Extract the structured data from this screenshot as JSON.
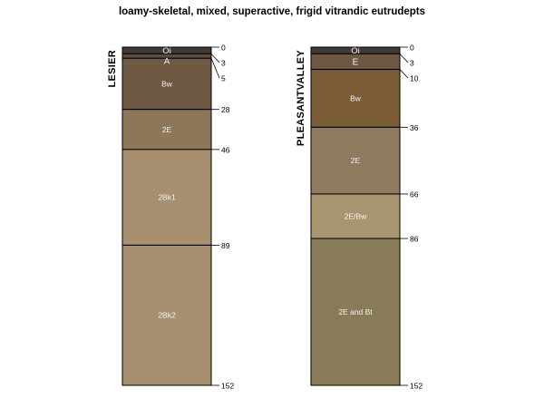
{
  "title": "loamy-skeletal, mixed, superactive, frigid vitrandic eutrudepts",
  "profiles": [
    {
      "name": "LESIER",
      "max_depth": 152,
      "horizons": [
        {
          "name": "Oi",
          "top": 0,
          "bottom": 3,
          "color": "#3f3a38",
          "text_color": "#e8e8e8"
        },
        {
          "name": "A",
          "top": 3,
          "bottom": 5,
          "color": "#5c5044",
          "text_color": "#e8e8e8"
        },
        {
          "name": "Bw",
          "top": 5,
          "bottom": 28,
          "color": "#6e5a42",
          "text_color": "#f2f2f2"
        },
        {
          "name": "2E",
          "top": 28,
          "bottom": 46,
          "color": "#8e7658",
          "text_color": "#f2f2f2"
        },
        {
          "name": "2Bk1",
          "top": 46,
          "bottom": 89,
          "color": "#a78f70",
          "text_color": "#222222"
        },
        {
          "name": "2Bk2",
          "top": 89,
          "bottom": 152,
          "color": "#a78f70",
          "text_color": "#222222"
        }
      ],
      "depth_labels": [
        "0",
        "3",
        "5",
        "28",
        "46",
        "89",
        "152"
      ]
    },
    {
      "name": "PLEASANTVALLEY",
      "max_depth": 152,
      "horizons": [
        {
          "name": "Oi",
          "top": 0,
          "bottom": 3,
          "color": "#3f3a38",
          "text_color": "#e8e8e8"
        },
        {
          "name": "E",
          "top": 3,
          "bottom": 10,
          "color": "#6c5842",
          "text_color": "#f2f2f2"
        },
        {
          "name": "Bw",
          "top": 10,
          "bottom": 36,
          "color": "#7a5c36",
          "text_color": "#f2f2f2"
        },
        {
          "name": "2E",
          "top": 36,
          "bottom": 66,
          "color": "#8e7a5f",
          "text_color": "#f2f2f2"
        },
        {
          "name": "2E/Bw",
          "top": 66,
          "bottom": 86,
          "color": "#a89670",
          "text_color": "#f2f2f2"
        },
        {
          "name": "2E and Bt",
          "top": 86,
          "bottom": 152,
          "color": "#877b58",
          "text_color": "#f2f2f2"
        }
      ],
      "depth_labels": [
        "0",
        "3",
        "10",
        "36",
        "66",
        "86",
        "152"
      ]
    }
  ]
}
